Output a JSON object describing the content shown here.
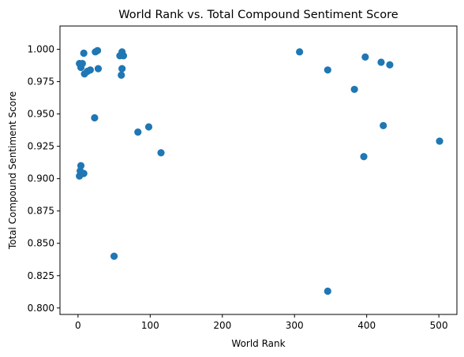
{
  "chart_data": {
    "type": "scatter",
    "title": "World Rank vs. Total Compound Sentiment Score",
    "xlabel": "World Rank",
    "ylabel": "Total Compound Sentiment Score",
    "xlim": [
      -25,
      525
    ],
    "ylim": [
      0.795,
      1.018
    ],
    "xticks": [
      0,
      100,
      200,
      300,
      400,
      500
    ],
    "yticks": [
      0.8,
      0.825,
      0.85,
      0.875,
      0.9,
      0.925,
      0.95,
      0.975,
      1.0
    ],
    "xtick_labels": [
      "0",
      "100",
      "200",
      "300",
      "400",
      "500"
    ],
    "ytick_labels": [
      "0.800",
      "0.825",
      "0.850",
      "0.875",
      "0.900",
      "0.925",
      "0.950",
      "0.975",
      "1.000"
    ],
    "grid": false,
    "legend": "none",
    "marker_color": "#1f77b4",
    "series": [
      {
        "points": [
          {
            "x": 2,
            "y": 0.989
          },
          {
            "x": 4,
            "y": 0.986
          },
          {
            "x": 6,
            "y": 0.989
          },
          {
            "x": 8,
            "y": 0.997
          },
          {
            "x": 9,
            "y": 0.981
          },
          {
            "x": 13,
            "y": 0.983
          },
          {
            "x": 17,
            "y": 0.984
          },
          {
            "x": 24,
            "y": 0.998
          },
          {
            "x": 27,
            "y": 0.999
          },
          {
            "x": 28,
            "y": 0.985
          },
          {
            "x": 23,
            "y": 0.947
          },
          {
            "x": 58,
            "y": 0.995
          },
          {
            "x": 61,
            "y": 0.998
          },
          {
            "x": 63,
            "y": 0.995
          },
          {
            "x": 61,
            "y": 0.985
          },
          {
            "x": 60,
            "y": 0.98
          },
          {
            "x": 2,
            "y": 0.902
          },
          {
            "x": 3,
            "y": 0.906
          },
          {
            "x": 4,
            "y": 0.91
          },
          {
            "x": 8,
            "y": 0.904
          },
          {
            "x": 50,
            "y": 0.84
          },
          {
            "x": 83,
            "y": 0.936
          },
          {
            "x": 98,
            "y": 0.94
          },
          {
            "x": 115,
            "y": 0.92
          },
          {
            "x": 307,
            "y": 0.998
          },
          {
            "x": 346,
            "y": 0.984
          },
          {
            "x": 346,
            "y": 0.813
          },
          {
            "x": 383,
            "y": 0.969
          },
          {
            "x": 398,
            "y": 0.994
          },
          {
            "x": 396,
            "y": 0.917
          },
          {
            "x": 420,
            "y": 0.99
          },
          {
            "x": 432,
            "y": 0.988
          },
          {
            "x": 423,
            "y": 0.941
          },
          {
            "x": 501,
            "y": 0.929
          }
        ]
      }
    ]
  }
}
